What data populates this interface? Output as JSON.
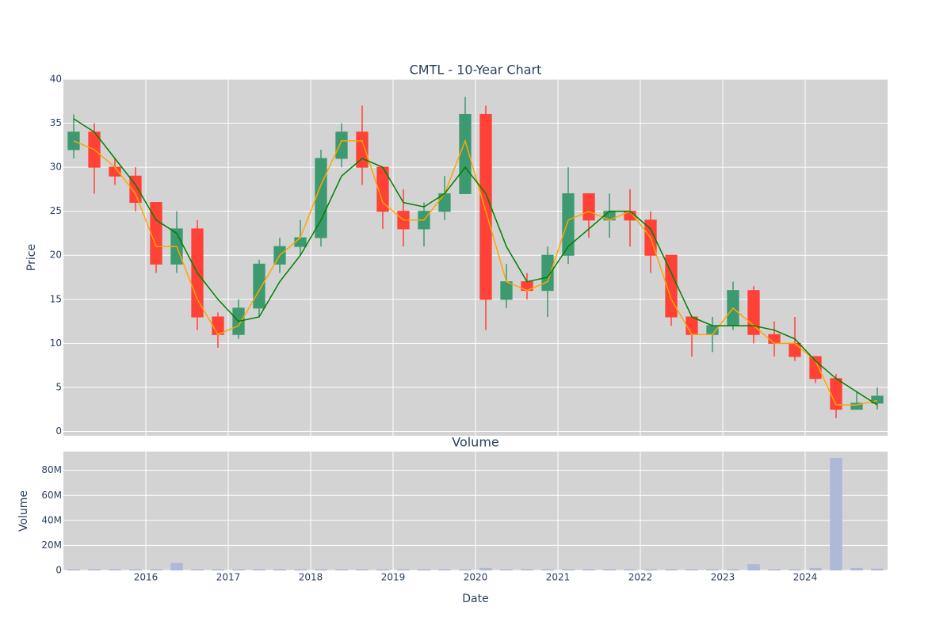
{
  "chart_data": [
    {
      "type": "candlestick",
      "title": "CMTL - 10-Year Chart",
      "ylabel": "Price",
      "x": [
        2015.125,
        2015.375,
        2015.625,
        2015.875,
        2016.125,
        2016.375,
        2016.625,
        2016.875,
        2017.125,
        2017.375,
        2017.625,
        2017.875,
        2018.125,
        2018.375,
        2018.625,
        2018.875,
        2019.125,
        2019.375,
        2019.625,
        2019.875,
        2020.125,
        2020.375,
        2020.625,
        2020.875,
        2021.125,
        2021.375,
        2021.625,
        2021.875,
        2022.125,
        2022.375,
        2022.625,
        2022.875,
        2023.125,
        2023.375,
        2023.625,
        2023.875,
        2024.125,
        2024.375,
        2024.625,
        2024.875
      ],
      "open": [
        32,
        34,
        30,
        29,
        26,
        19,
        23,
        13,
        11,
        14,
        19,
        21,
        22,
        31,
        34,
        30,
        25,
        23,
        25,
        27,
        36,
        15,
        17,
        16,
        20,
        27,
        24,
        25,
        24,
        20,
        13,
        11,
        12,
        16,
        11,
        10,
        8.5,
        6,
        2.5,
        3.2
      ],
      "high": [
        36,
        35,
        31,
        30,
        26,
        25,
        24,
        13.5,
        15,
        19.5,
        22,
        24,
        32,
        35,
        37,
        30,
        27.5,
        26,
        29,
        38,
        37,
        19,
        18,
        21,
        30,
        27,
        27,
        27.5,
        25,
        20,
        13,
        13,
        17,
        16.5,
        12.5,
        13,
        8.5,
        6.5,
        4.5,
        5
      ],
      "low": [
        31,
        27,
        28,
        25,
        18,
        18,
        11.5,
        9.5,
        10.5,
        13,
        18,
        20,
        21,
        30,
        28,
        23,
        21,
        21,
        24,
        27,
        11.5,
        14,
        15,
        13,
        19,
        22,
        22,
        21,
        18,
        12,
        8.5,
        9,
        11.5,
        10,
        8.5,
        8,
        5.5,
        1.5,
        2.5,
        2.5
      ],
      "close": [
        34,
        30,
        29,
        26,
        19,
        23,
        13,
        11,
        14,
        19,
        21,
        22,
        31,
        34,
        30,
        25,
        23,
        25,
        27,
        36,
        15,
        17,
        16,
        20,
        27,
        24,
        25,
        24,
        20,
        13,
        11,
        12,
        16,
        11,
        10,
        8.5,
        6,
        2.5,
        3.2,
        4
      ],
      "increasing_color": "#3d9970",
      "decreasing_color": "#ff4136",
      "lines": [
        {
          "color": "#ffa500",
          "values": [
            33,
            32,
            30,
            27,
            21,
            21,
            15,
            11,
            12,
            16,
            20,
            22,
            28,
            33,
            33,
            26,
            24,
            24,
            27,
            33,
            25,
            17,
            16,
            17,
            24,
            25,
            24,
            25,
            22,
            15,
            11,
            11,
            14,
            12,
            10,
            10,
            8,
            3,
            3,
            3.5
          ]
        },
        {
          "color": "#008000",
          "values": [
            35.5,
            34,
            31,
            28,
            24,
            22.5,
            18,
            15,
            12.5,
            13,
            17,
            20,
            24,
            29,
            31,
            30,
            26,
            25.5,
            27,
            30,
            27,
            21,
            17,
            17.5,
            21,
            23,
            25,
            25,
            23,
            18,
            13,
            12,
            12,
            12,
            11.5,
            10.5,
            8,
            6,
            4.5,
            3
          ]
        }
      ],
      "xlim": [
        2015,
        2025
      ],
      "xticks": [
        2016,
        2017,
        2018,
        2019,
        2020,
        2021,
        2022,
        2023,
        2024
      ],
      "ylim": [
        -0.5,
        40
      ],
      "yticks": [
        0,
        5,
        10,
        15,
        20,
        25,
        30,
        35,
        40
      ],
      "grid": true
    },
    {
      "type": "bar",
      "title": "Volume",
      "ylabel": "Volume",
      "xlabel": "Date",
      "color": "#b0b8d8",
      "x": [
        2015.125,
        2015.375,
        2015.625,
        2015.875,
        2016.125,
        2016.375,
        2016.625,
        2016.875,
        2017.125,
        2017.375,
        2017.625,
        2017.875,
        2018.125,
        2018.375,
        2018.625,
        2018.875,
        2019.125,
        2019.375,
        2019.625,
        2019.875,
        2020.125,
        2020.375,
        2020.625,
        2020.875,
        2021.125,
        2021.375,
        2021.625,
        2021.875,
        2022.125,
        2022.375,
        2022.625,
        2022.875,
        2023.125,
        2023.375,
        2023.625,
        2023.875,
        2024.125,
        2024.375,
        2024.625,
        2024.875
      ],
      "values": [
        1000000,
        1000000,
        1000000,
        1000000,
        1000000,
        6000000,
        1000000,
        1000000,
        1000000,
        1000000,
        1000000,
        1000000,
        1000000,
        1000000,
        1000000,
        1000000,
        1000000,
        1000000,
        1000000,
        1000000,
        2000000,
        1000000,
        1000000,
        1000000,
        1000000,
        1000000,
        1000000,
        1000000,
        1000000,
        1000000,
        1000000,
        1000000,
        1000000,
        5000000,
        1000000,
        1000000,
        2000000,
        90000000,
        2000000,
        1500000
      ],
      "xlim": [
        2015,
        2025
      ],
      "xticks": [
        2016,
        2017,
        2018,
        2019,
        2020,
        2021,
        2022,
        2023,
        2024
      ],
      "ylim": [
        0,
        95000000
      ],
      "yticks": [
        0,
        {
          "value": 20000000,
          "label": "20M"
        },
        {
          "value": 40000000,
          "label": "40M"
        },
        {
          "value": 60000000,
          "label": "60M"
        },
        {
          "value": 80000000,
          "label": "80M"
        }
      ],
      "grid": true
    }
  ]
}
